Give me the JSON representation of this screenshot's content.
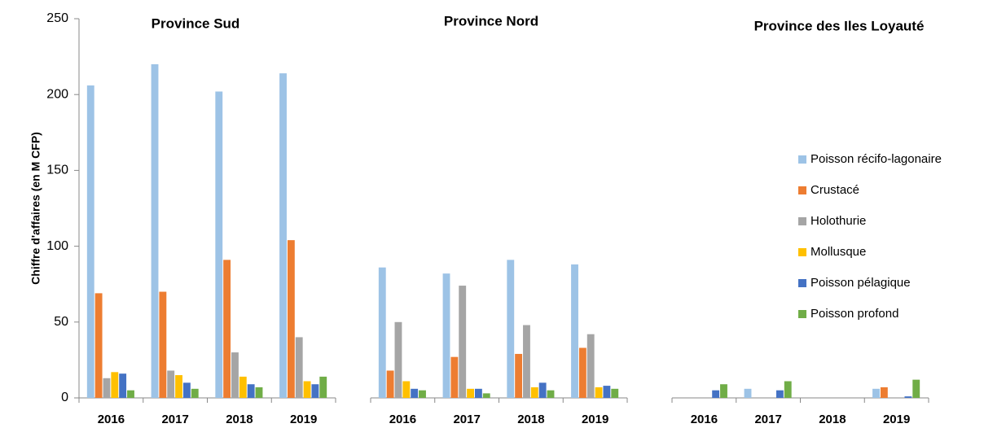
{
  "chart_data": {
    "type": "bar",
    "ylabel": "Chiffre d'affaires (en M CFP)",
    "ylim": [
      0,
      250
    ],
    "yticks": [
      0,
      50,
      100,
      150,
      200,
      250
    ],
    "legend": "right",
    "series": [
      {
        "name": "Poisson récifo-lagonaire",
        "color": "#9dc3e6"
      },
      {
        "name": "Crustacé",
        "color": "#ed7d31"
      },
      {
        "name": "Holothurie",
        "color": "#a5a5a5"
      },
      {
        "name": "Mollusque",
        "color": "#ffc000"
      },
      {
        "name": "Poisson pélagique",
        "color": "#4472c4"
      },
      {
        "name": "Poisson profond",
        "color": "#70ad47"
      }
    ],
    "panels": [
      {
        "title": "Province Sud",
        "categories": [
          "2016",
          "2017",
          "2018",
          "2019"
        ],
        "values": [
          [
            206,
            220,
            202,
            214
          ],
          [
            69,
            70,
            91,
            104
          ],
          [
            13,
            18,
            30,
            40
          ],
          [
            17,
            15,
            14,
            11
          ],
          [
            16,
            10,
            9,
            9
          ],
          [
            5,
            6,
            7,
            14
          ]
        ]
      },
      {
        "title": "Province Nord",
        "categories": [
          "2016",
          "2017",
          "2018",
          "2019"
        ],
        "values": [
          [
            86,
            82,
            91,
            88
          ],
          [
            18,
            27,
            29,
            33
          ],
          [
            50,
            74,
            48,
            42
          ],
          [
            11,
            6,
            7,
            7
          ],
          [
            6,
            6,
            10,
            8
          ],
          [
            5,
            3,
            5,
            6
          ]
        ]
      },
      {
        "title": "Province des Iles Loyauté",
        "categories": [
          "2016",
          "2017",
          "2018",
          "2019"
        ],
        "values": [
          [
            0,
            6,
            0,
            6
          ],
          [
            0,
            0,
            0,
            7
          ],
          [
            0,
            0,
            0,
            0
          ],
          [
            0,
            0,
            0,
            0
          ],
          [
            5,
            5,
            0,
            1
          ],
          [
            9,
            11,
            0,
            12
          ]
        ]
      }
    ]
  }
}
